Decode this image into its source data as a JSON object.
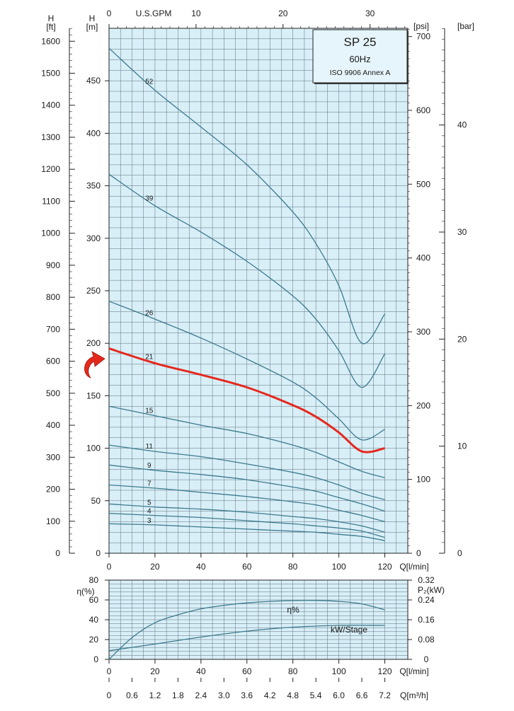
{
  "chart_data": [
    {
      "type": "line",
      "title_box": {
        "model": "SP 25",
        "frequency": "60Hz",
        "standard": "ISO 9906 Annex A"
      },
      "x_axis": {
        "label": "Q[l/min]",
        "ticks": [
          0,
          20,
          40,
          60,
          80,
          100,
          120
        ],
        "range": [
          0,
          130
        ]
      },
      "top_axis": {
        "label": "U.S.GPM",
        "ticks": [
          0,
          10,
          20,
          30
        ]
      },
      "left_axis_m": {
        "unit_top": "H",
        "unit_bottom": "[m]",
        "ticks": [
          0,
          50,
          100,
          150,
          200,
          250,
          300,
          350,
          400,
          450
        ],
        "range": [
          0,
          500
        ]
      },
      "left_axis_ft": {
        "unit_top": "H",
        "unit_bottom": "[ft]",
        "ticks": [
          0,
          100,
          200,
          300,
          400,
          500,
          600,
          700,
          800,
          900,
          1000,
          1100,
          1200,
          1300,
          1400,
          1500,
          1600
        ]
      },
      "right_axis_psi": {
        "unit": "[psi]",
        "ticks": [
          0,
          100,
          200,
          300,
          400,
          500,
          600,
          700
        ]
      },
      "right_axis_bar": {
        "unit": "[bar]",
        "ticks": [
          0,
          10,
          20,
          30,
          40
        ]
      },
      "highlight_color": "#e5281d",
      "curve_color": "#3d7a8c",
      "grid": true,
      "series": [
        {
          "name": "52",
          "highlight": false,
          "x": [
            0,
            20,
            40,
            60,
            80,
            90,
            100,
            110,
            120
          ],
          "y": [
            481,
            441,
            406,
            370,
            325,
            295,
            255,
            200,
            228
          ]
        },
        {
          "name": "39",
          "highlight": false,
          "x": [
            0,
            20,
            40,
            60,
            80,
            90,
            100,
            110,
            120
          ],
          "y": [
            361,
            331,
            306,
            278,
            245,
            223,
            193,
            158,
            190
          ]
        },
        {
          "name": "26",
          "highlight": false,
          "x": [
            0,
            20,
            40,
            60,
            80,
            90,
            100,
            110,
            120
          ],
          "y": [
            240,
            223,
            205,
            185,
            163,
            148,
            128,
            108,
            118
          ]
        },
        {
          "name": "21",
          "highlight": true,
          "x": [
            0,
            20,
            40,
            60,
            80,
            90,
            100,
            110,
            120
          ],
          "y": [
            195,
            181,
            170,
            158,
            141,
            130,
            115,
            97,
            100
          ]
        },
        {
          "name": "15",
          "highlight": false,
          "x": [
            0,
            20,
            40,
            60,
            80,
            90,
            100,
            110,
            120
          ],
          "y": [
            140,
            131,
            122,
            114,
            103,
            96,
            87,
            78,
            72
          ]
        },
        {
          "name": "11",
          "highlight": false,
          "x": [
            0,
            20,
            40,
            60,
            80,
            90,
            100,
            110,
            120
          ],
          "y": [
            103,
            97,
            92,
            85,
            77,
            72,
            65,
            57,
            51
          ]
        },
        {
          "name": "9",
          "highlight": false,
          "x": [
            0,
            20,
            40,
            60,
            80,
            90,
            100,
            110,
            120
          ],
          "y": [
            84,
            79,
            75,
            70,
            63,
            59,
            53,
            47,
            40
          ]
        },
        {
          "name": "7",
          "highlight": false,
          "x": [
            0,
            20,
            40,
            60,
            80,
            90,
            100,
            110,
            120
          ],
          "y": [
            65,
            62,
            58,
            54,
            49,
            46,
            41,
            36,
            30
          ]
        },
        {
          "name": "5",
          "highlight": false,
          "x": [
            0,
            20,
            40,
            60,
            80,
            90,
            100,
            110,
            120
          ],
          "y": [
            47,
            44,
            42,
            39,
            35,
            33,
            30,
            26,
            20
          ]
        },
        {
          "name": "4",
          "highlight": false,
          "x": [
            0,
            20,
            40,
            60,
            80,
            90,
            100,
            110,
            120
          ],
          "y": [
            38,
            36,
            34,
            31,
            28,
            26,
            24,
            21,
            15
          ]
        },
        {
          "name": "3",
          "highlight": false,
          "x": [
            0,
            20,
            40,
            60,
            80,
            90,
            100,
            110,
            120
          ],
          "y": [
            28,
            27,
            25,
            23,
            21,
            20,
            18,
            16,
            12
          ]
        }
      ]
    },
    {
      "type": "line",
      "x_axis": {
        "label": "Q[l/min]",
        "ticks": [
          0,
          20,
          40,
          60,
          80,
          100,
          120
        ],
        "range": [
          0,
          130
        ]
      },
      "x_axis_2": {
        "label": "Q[m³/h]",
        "ticks": [
          "0",
          "0.6",
          "1.2",
          "1.8",
          "2.4",
          "3.0",
          "3.6",
          "4.2",
          "4.8",
          "5.4",
          "6.0",
          "6.6",
          "7.2"
        ]
      },
      "left_axis": {
        "unit": "η(%)",
        "ticks": [
          0,
          20,
          40,
          60,
          80
        ],
        "range": [
          0,
          80
        ]
      },
      "right_axis": {
        "unit": "P₂(kW)",
        "ticks": [
          "0",
          "0.08",
          "0.16",
          "0.24",
          "0.32"
        ],
        "range": [
          0,
          0.32
        ]
      },
      "grid": true,
      "series": [
        {
          "name": "η%",
          "axis": "left",
          "x": [
            0,
            10,
            20,
            30,
            40,
            50,
            60,
            70,
            80,
            90,
            100,
            110,
            120
          ],
          "y": [
            0,
            22,
            37,
            45,
            51,
            54.5,
            57,
            58.5,
            59.3,
            59.5,
            58.5,
            56,
            50
          ]
        },
        {
          "name": "kW/Stage",
          "axis": "right",
          "x": [
            0,
            20,
            40,
            60,
            80,
            100,
            120
          ],
          "y": [
            0.035,
            0.062,
            0.09,
            0.114,
            0.13,
            0.137,
            0.137
          ]
        }
      ]
    }
  ]
}
